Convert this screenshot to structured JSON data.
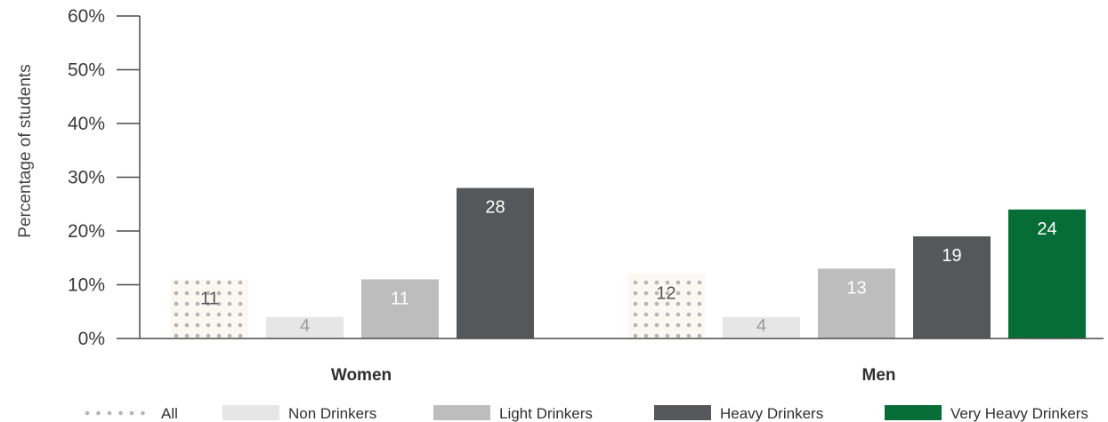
{
  "chart_data": {
    "type": "bar",
    "ylabel": "Percentage of students",
    "y_ticks": [
      "0%",
      "10%",
      "20%",
      "30%",
      "40%",
      "50%",
      "60%"
    ],
    "ylim": [
      0,
      60
    ],
    "grid": false,
    "legend_position": "bottom",
    "categories": [
      "Women",
      "Men"
    ],
    "series": [
      {
        "name": "All",
        "values": [
          11,
          12
        ],
        "color": "#bfbfbf",
        "pattern": "dots"
      },
      {
        "name": "Non Drinkers",
        "values": [
          4,
          4
        ],
        "color": "#e6e6e6"
      },
      {
        "name": "Light Drinkers",
        "values": [
          11,
          13
        ],
        "color": "#bdbdbd"
      },
      {
        "name": "Heavy Drinkers",
        "values": [
          28,
          19
        ],
        "color": "#56575b"
      },
      {
        "name": "Very Heavy Drinkers",
        "values": [
          null,
          24
        ],
        "color": "#066d36"
      }
    ],
    "data_labels": [
      [
        "11",
        "4",
        "11",
        "28",
        null
      ],
      [
        "12",
        "4",
        "13",
        "19",
        "24"
      ]
    ],
    "label_colors": {
      "All": "#555555",
      "Non Drinkers": "#9a9a9a",
      "Light Drinkers": "#ffffff",
      "Heavy Drinkers": "#ffffff",
      "Very Heavy Drinkers": "#ffffff"
    }
  }
}
